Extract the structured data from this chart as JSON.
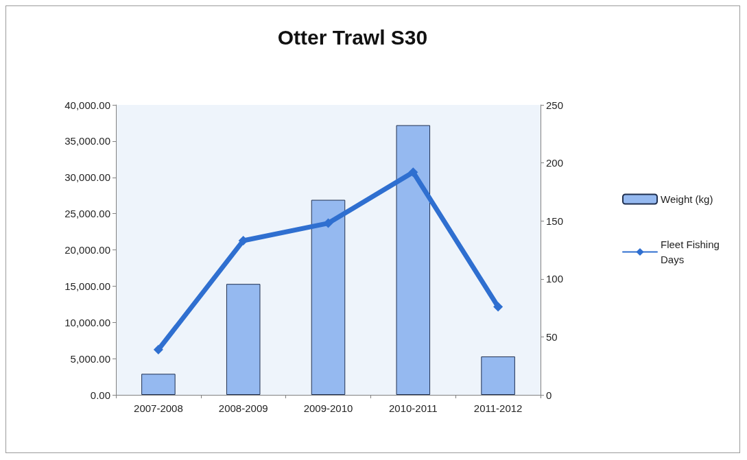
{
  "chart_data": {
    "type": "bar",
    "title": "Otter Trawl S30",
    "categories": [
      "2007-2008",
      "2008-2009",
      "2009-2010",
      "2010-2011",
      "2011-2012"
    ],
    "series": [
      {
        "name": "Weight (kg)",
        "color": "#95b9f0",
        "values": [
          2900,
          15300,
          26900,
          37200,
          5300
        ]
      },
      {
        "name": "Fleet Fishing Days",
        "type": "line",
        "axis": "y2",
        "color": "#2f6fd0",
        "marker": "diamond",
        "values": [
          39,
          133,
          148,
          192,
          76
        ]
      }
    ],
    "ylim": [
      0,
      40000
    ],
    "yticks": [
      {
        "value": 0,
        "label": "0.00"
      },
      {
        "value": 5000,
        "label": "5,000.00"
      },
      {
        "value": 10000,
        "label": "10,000.00"
      },
      {
        "value": 15000,
        "label": "15,000.00"
      },
      {
        "value": 20000,
        "label": "20,000.00"
      },
      {
        "value": 25000,
        "label": "25,000.00"
      },
      {
        "value": 30000,
        "label": "30,000.00"
      },
      {
        "value": 35000,
        "label": "35,000.00"
      },
      {
        "value": 40000,
        "label": "40,000.00"
      }
    ],
    "y2lim": [
      0,
      250
    ],
    "y2ticks": [
      0,
      50,
      100,
      150,
      200,
      250
    ],
    "grid": false,
    "legend": "right"
  }
}
